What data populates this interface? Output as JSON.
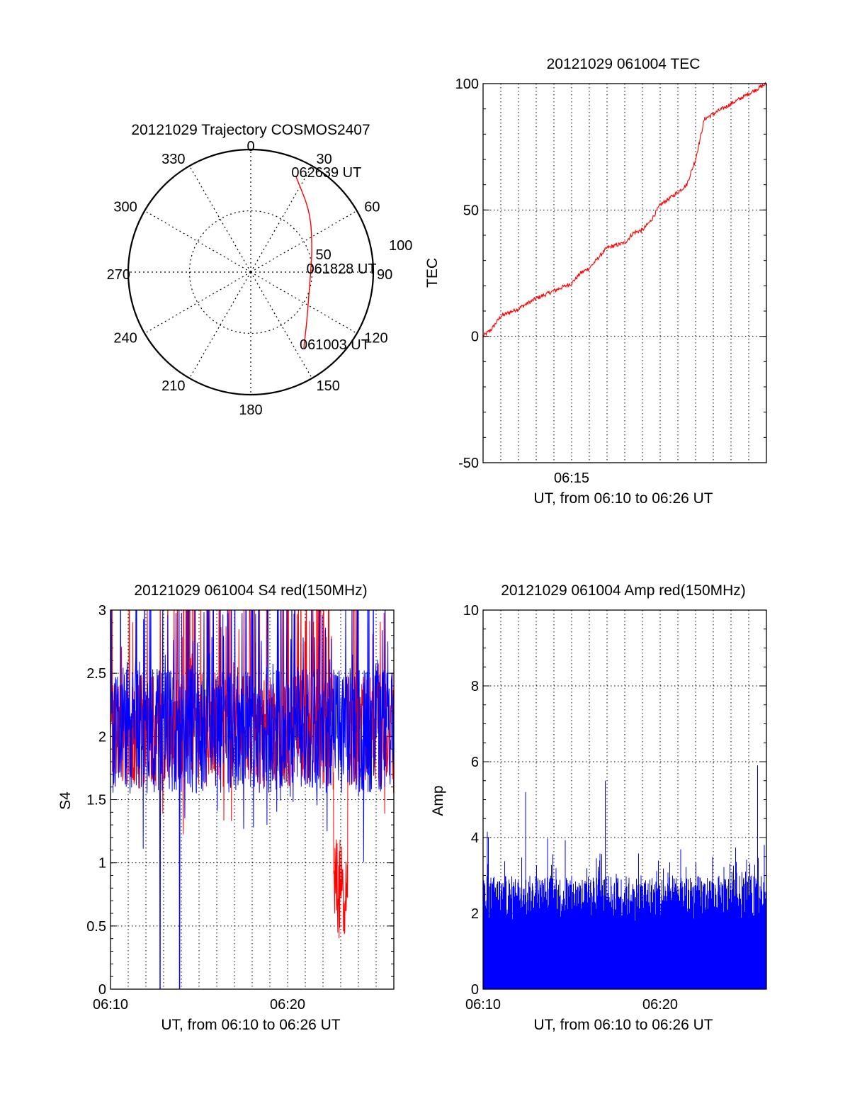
{
  "chart_data": [
    {
      "type": "polar",
      "title": "20121029 Trajectory COSMOS2407",
      "angle_labels": [
        "0",
        "30",
        "60",
        "90",
        "120",
        "150",
        "180",
        "210",
        "240",
        "270",
        "300",
        "330"
      ],
      "radius_labels": [
        "50",
        "100"
      ],
      "series_color": "#ff0000",
      "trajectory": [
        {
          "az": 25,
          "el": 12
        },
        {
          "az": 45,
          "el": 28
        },
        {
          "az": 70,
          "el": 42
        },
        {
          "az": 90,
          "el": 46
        },
        {
          "az": 112,
          "el": 44
        },
        {
          "az": 130,
          "el": 36
        },
        {
          "az": 145,
          "el": 22
        }
      ],
      "annotations": [
        {
          "text": "062639 UT",
          "az": 25,
          "el": 12
        },
        {
          "text": "061828 UT",
          "az": 90,
          "el": 46
        },
        {
          "text": "061003 UT",
          "az": 145,
          "el": 22
        }
      ]
    },
    {
      "type": "line",
      "title": "20121029 061004 TEC",
      "xlabel": "UT, from 06:10 to 06:26 UT",
      "ylabel": "TEC",
      "xlim": [
        10,
        26
      ],
      "ylim": [
        -50,
        100
      ],
      "yticks": [
        "-50",
        "0",
        "50",
        "100"
      ],
      "xtick_labels": [
        "06:15"
      ],
      "xtick_positions": [
        15
      ],
      "grid": true,
      "series_color": "#ff0000",
      "x": [
        10,
        10.5,
        11,
        12,
        13,
        14,
        15,
        15.5,
        16,
        17,
        18,
        18.5,
        19,
        19.5,
        20,
        21,
        21.5,
        22,
        22.5,
        23,
        24,
        25,
        26
      ],
      "values": [
        0,
        3,
        8,
        11,
        15,
        18,
        21,
        25,
        27,
        35,
        37,
        41,
        42,
        46,
        52,
        57,
        60,
        70,
        86,
        88,
        92,
        96,
        100
      ]
    },
    {
      "type": "line",
      "title": "20121029 061004 S4 red(150MHz)",
      "xlabel": "UT, from 06:10 to 06:26 UT",
      "ylabel": "S4",
      "xlim": [
        10,
        26
      ],
      "ylim": [
        0,
        3
      ],
      "yticks": [
        "0",
        "0.5",
        "1",
        "1.5",
        "2",
        "2.5",
        "3"
      ],
      "xtick_labels": [
        "06:10",
        "06:20"
      ],
      "xtick_positions": [
        10,
        20
      ],
      "grid": true,
      "series": [
        {
          "color": "#ff0000",
          "base": 2.05,
          "spread": 0.45
        },
        {
          "color": "#0000ff",
          "base": 2.05,
          "spread": 0.5
        }
      ],
      "features": [
        {
          "series": 0,
          "x_range": [
            22.6,
            23.4
          ],
          "min": 0.4
        },
        {
          "series": 1,
          "x": 12.8,
          "min": 0.0
        },
        {
          "series": 1,
          "x": 13.9,
          "min": 0.0
        }
      ]
    },
    {
      "type": "bar",
      "title": "20121029 061004 Amp red(150MHz)",
      "xlabel": "UT, from 06:10 to 06:26 UT",
      "ylabel": "Amp",
      "xlim": [
        10,
        26
      ],
      "ylim": [
        0,
        10
      ],
      "yticks": [
        "0",
        "2",
        "4",
        "6",
        "8",
        "10"
      ],
      "xtick_labels": [
        "06:10",
        "06:20"
      ],
      "xtick_positions": [
        10,
        20
      ],
      "grid": true,
      "series_color": "#0000ff",
      "base": 2.4,
      "spread": 0.6,
      "peaks": [
        {
          "x": 12.4,
          "value": 5.2
        },
        {
          "x": 16.9,
          "value": 5.5
        },
        {
          "x": 25.5,
          "value": 5.9
        }
      ]
    }
  ]
}
